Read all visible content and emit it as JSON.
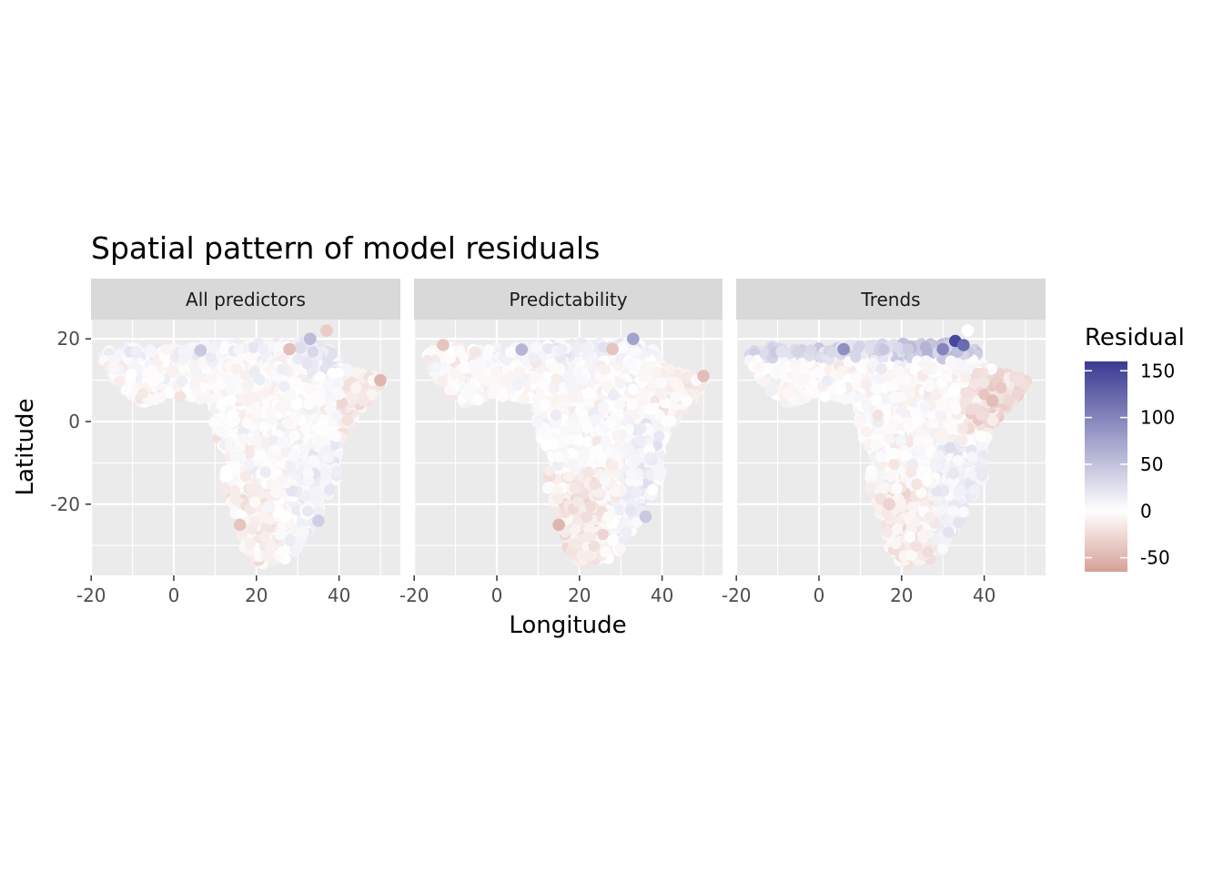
{
  "chart_data": {
    "type": "scatter",
    "title": "Spatial pattern of model residuals",
    "xlabel": "Longitude",
    "ylabel": "Latitude",
    "xlim": [
      -20,
      55
    ],
    "ylim": [
      -37,
      24
    ],
    "x_ticks": [
      -20,
      0,
      20,
      40
    ],
    "x_tick_labels": [
      "-20",
      "0",
      "20",
      "40"
    ],
    "y_ticks": [
      20,
      0,
      -20
    ],
    "y_tick_labels": [
      "20",
      "0",
      "-20"
    ],
    "grid": true,
    "panels": [
      {
        "label": "All predictors"
      },
      {
        "label": "Predictability"
      },
      {
        "label": "Trends"
      }
    ],
    "color_scale": {
      "title": "Residual",
      "min": -65,
      "max": 160,
      "midpoint": 0,
      "low_color": "#d6a097",
      "mid_color": "#ffffff",
      "high_color": "#3b3a93",
      "breaks": [
        150,
        100,
        50,
        0,
        -50
      ],
      "break_labels": [
        "150",
        "100",
        "50",
        "0",
        "-50"
      ]
    },
    "legend_position": "right",
    "notable_points": [
      {
        "panel": 0,
        "lon": 33,
        "lat": 20,
        "value": 55
      },
      {
        "panel": 0,
        "lon": 37,
        "lat": 22,
        "value": -35
      },
      {
        "panel": 0,
        "lon": 28,
        "lat": 17.5,
        "value": -45
      },
      {
        "panel": 0,
        "lon": 6.5,
        "lat": 17.2,
        "value": 45
      },
      {
        "panel": 0,
        "lon": 16,
        "lat": -25,
        "value": -40
      },
      {
        "panel": 0,
        "lon": 50,
        "lat": 10,
        "value": -50
      },
      {
        "panel": 0,
        "lon": 35,
        "lat": -24,
        "value": 40
      },
      {
        "panel": 1,
        "lon": 33,
        "lat": 20,
        "value": 75
      },
      {
        "panel": 1,
        "lon": 28,
        "lat": 17.5,
        "value": -40
      },
      {
        "panel": 1,
        "lon": 6,
        "lat": 17.4,
        "value": 60
      },
      {
        "panel": 1,
        "lon": -13,
        "lat": 18.5,
        "value": -40
      },
      {
        "panel": 1,
        "lon": 15,
        "lat": -25,
        "value": -50
      },
      {
        "panel": 1,
        "lon": 50,
        "lat": 11,
        "value": -45
      },
      {
        "panel": 1,
        "lon": 36,
        "lat": -23,
        "value": 45
      },
      {
        "panel": 2,
        "lon": 33,
        "lat": 19.5,
        "value": 150
      },
      {
        "panel": 2,
        "lon": 35,
        "lat": 18.5,
        "value": 120
      },
      {
        "panel": 2,
        "lon": 6,
        "lat": 17.5,
        "value": 90
      },
      {
        "panel": 2,
        "lon": 30,
        "lat": 17.5,
        "value": 100
      },
      {
        "panel": 2,
        "lon": 42,
        "lat": 5,
        "value": -45
      },
      {
        "panel": 2,
        "lon": 17,
        "lat": -20,
        "value": -30
      },
      {
        "panel": 2,
        "lon": 36,
        "lat": 22,
        "value": 0
      }
    ]
  }
}
